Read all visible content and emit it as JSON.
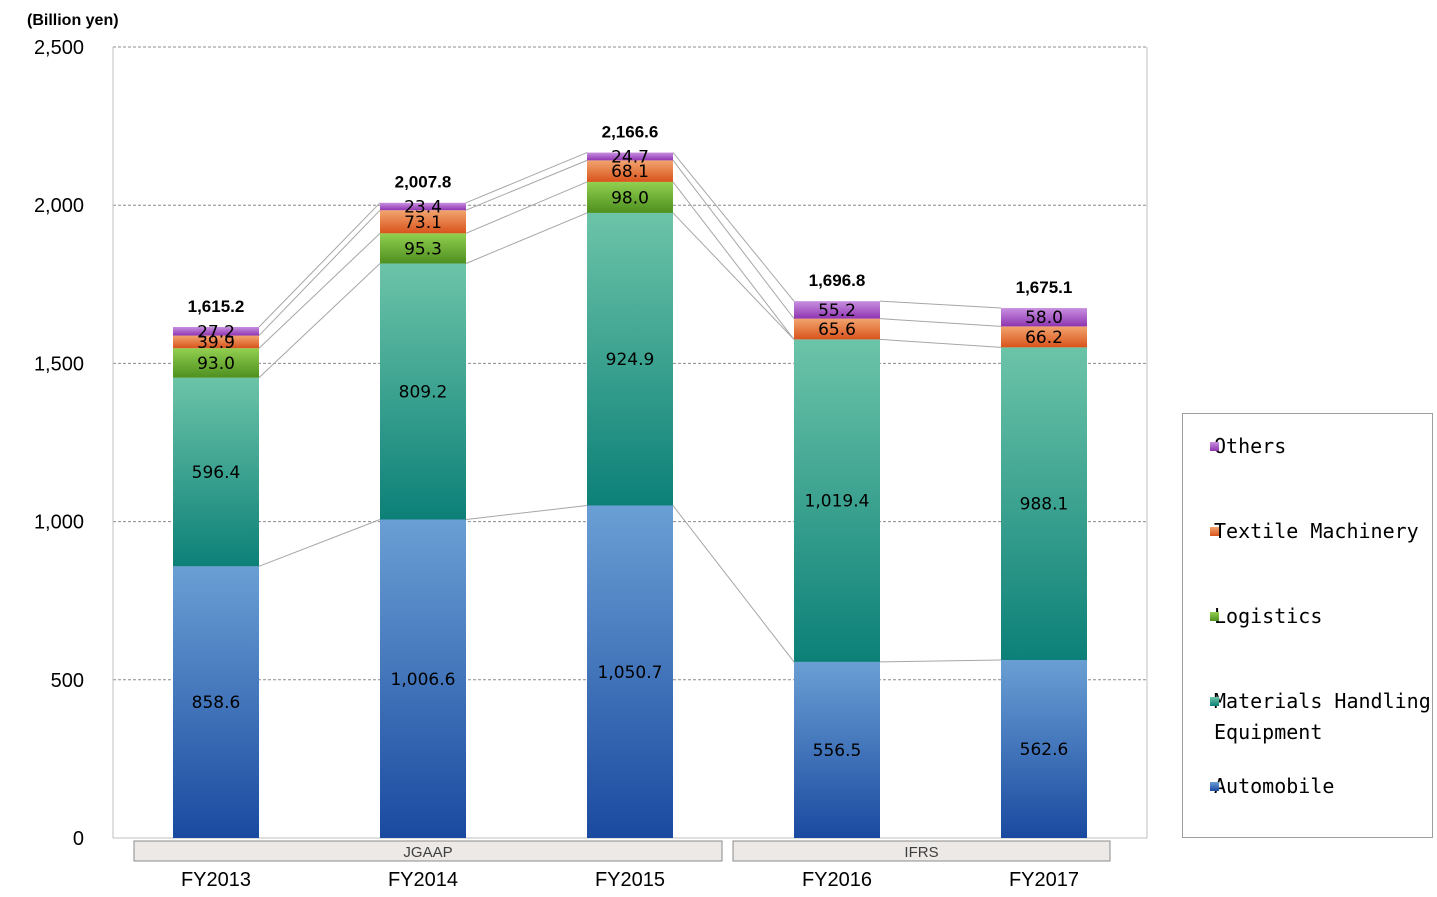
{
  "chart_data": {
    "type": "bar",
    "stacked": true,
    "unit_label": "(Billion yen)",
    "categories": [
      "FY2013",
      "FY2014",
      "FY2015",
      "FY2016",
      "FY2017"
    ],
    "series": [
      {
        "name": "Automobile",
        "values": [
          858.6,
          1006.6,
          1050.7,
          556.5,
          562.6
        ],
        "labels": [
          "858.6",
          "1,006.6",
          "1,050.7",
          "556.5",
          "562.6"
        ]
      },
      {
        "name": "Materials Handling\nEquipment",
        "values": [
          596.4,
          809.2,
          924.9,
          1019.4,
          988.1
        ],
        "labels": [
          "596.4",
          "809.2",
          "924.9",
          "1,019.4",
          "988.1"
        ]
      },
      {
        "name": "Logistics",
        "values": [
          93.0,
          95.3,
          98.0,
          null,
          null
        ],
        "labels": [
          "93.0",
          "95.3",
          "98.0",
          "",
          ""
        ]
      },
      {
        "name": "Textile Machinery",
        "values": [
          39.9,
          73.1,
          68.1,
          65.6,
          66.2
        ],
        "labels": [
          "39.9",
          "73.1",
          "68.1",
          "65.6",
          "66.2"
        ]
      },
      {
        "name": "Others",
        "values": [
          27.2,
          23.4,
          24.7,
          55.2,
          58.0
        ],
        "labels": [
          "27.2",
          "23.4",
          "24.7",
          "55.2",
          "58.0"
        ]
      }
    ],
    "totals": [
      1615.2,
      2007.8,
      2166.6,
      1696.8,
      1675.1
    ],
    "total_labels": [
      "1,615.2",
      "2,007.8",
      "2,166.6",
      "1,696.8",
      "1,675.1"
    ],
    "ylim": [
      0,
      2500
    ],
    "yticks": [
      0,
      500,
      1000,
      1500,
      2000,
      2500
    ],
    "ytick_labels": [
      "0",
      "500",
      "1,000",
      "1,500",
      "2,000",
      "2,500"
    ],
    "grid": true,
    "legend_position": "right",
    "groups": [
      {
        "label": "JGAAP",
        "categories": [
          "FY2013",
          "FY2014",
          "FY2015"
        ]
      },
      {
        "label": "IFRS",
        "categories": [
          "FY2016",
          "FY2017"
        ]
      }
    ],
    "colors": {
      "Automobile": [
        "#6a9fd4",
        "#1a4aa0"
      ],
      "Materials Handling\nEquipment": [
        "#6cc4a8",
        "#0c8078"
      ],
      "Logistics": [
        "#92d050",
        "#4e8f1f"
      ],
      "Textile Machinery": [
        "#f2a46e",
        "#d9531c"
      ],
      "Others": [
        "#c88fe0",
        "#8e35b0"
      ]
    }
  },
  "legend": {
    "items": [
      "Others",
      "Textile Machinery",
      "Logistics",
      "Materials Handling\nEquipment",
      "Automobile"
    ]
  }
}
